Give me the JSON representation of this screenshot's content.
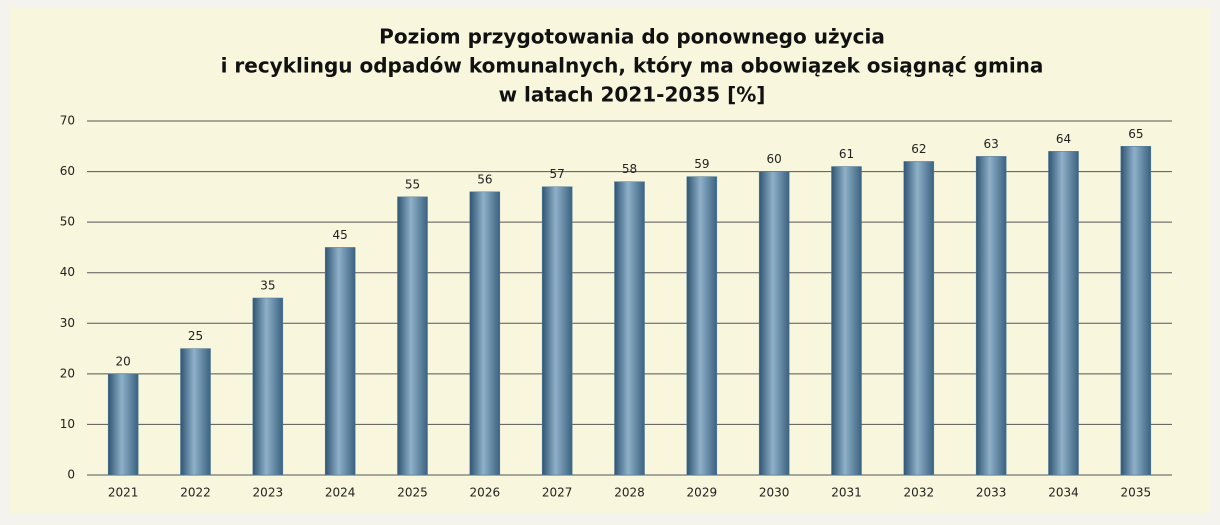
{
  "chart_data": {
    "type": "bar",
    "title": [
      "Poziom przygotowania do ponownego użycia",
      "i recyklingu odpadów komunalnych,  który ma obowiązek osiągnąć gmina",
      "w latach 2021-2035 [%]"
    ],
    "categories": [
      "2021",
      "2022",
      "2023",
      "2024",
      "2025",
      "2026",
      "2027",
      "2028",
      "2029",
      "2030",
      "2031",
      "2032",
      "2033",
      "2034",
      "2035"
    ],
    "values": [
      20,
      25,
      35,
      45,
      55,
      56,
      57,
      58,
      59,
      60,
      61,
      62,
      63,
      64,
      65
    ],
    "color": "#4f7896",
    "ylim": [
      0,
      70
    ],
    "yticks": [
      0,
      10,
      20,
      30,
      40,
      50,
      60,
      70
    ],
    "grid": true
  }
}
